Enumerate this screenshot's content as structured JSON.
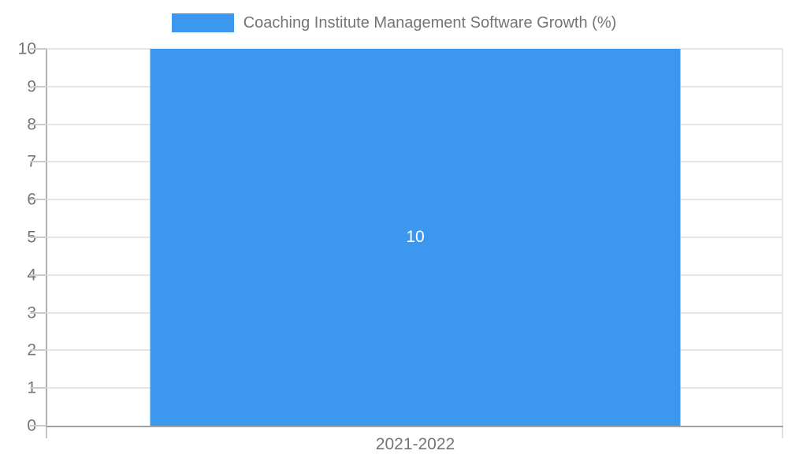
{
  "chart_data": {
    "type": "bar",
    "title": "Coaching Institute Management Software Growth (%)",
    "categories": [
      "2021-2022"
    ],
    "values": [
      10
    ],
    "bar_labels": [
      "10"
    ],
    "xlabel": "",
    "ylabel": "",
    "ylim": [
      0,
      10
    ],
    "ytick_step": 1,
    "grid": true,
    "legend_position": "top",
    "colors": {
      "bar": "#3b98ee",
      "bar_label_text": "#ffffff",
      "axis_text": "#757575",
      "legend_text": "#757575",
      "axis_line": "#a2a2a2",
      "gridline": "#e7e7e7"
    }
  },
  "legend": {
    "items": [
      {
        "label": "Coaching Institute Management Software Growth (%)",
        "swatch_color": "#3b98ee"
      }
    ]
  }
}
